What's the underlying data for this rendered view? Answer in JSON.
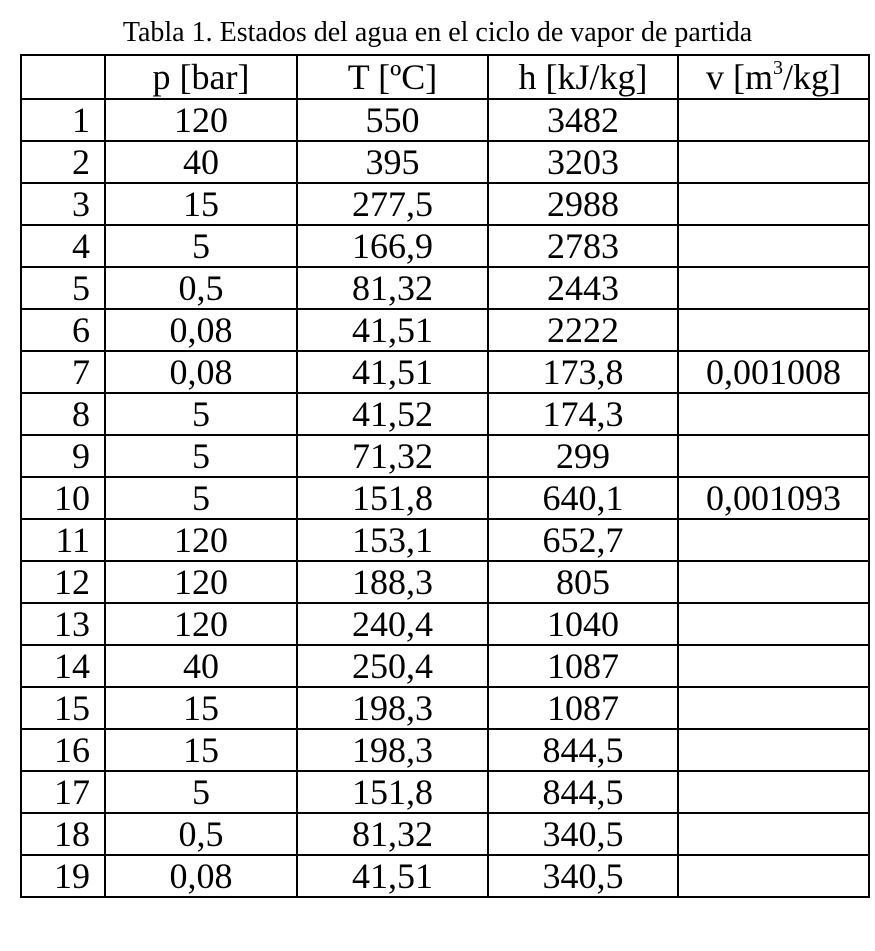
{
  "caption": "Tabla 1. Estados del agua en el ciclo de vapor de partida",
  "headers": {
    "index": "",
    "p": "p [bar]",
    "T": "T [ºC]",
    "h": "h [kJ/kg]",
    "v_prefix": "v [m",
    "v_sup": "3",
    "v_suffix": "/kg]"
  },
  "rows": [
    {
      "n": "1",
      "p": "120",
      "T": "550",
      "h": "3482",
      "v": ""
    },
    {
      "n": "2",
      "p": "40",
      "T": "395",
      "h": "3203",
      "v": ""
    },
    {
      "n": "3",
      "p": "15",
      "T": "277,5",
      "h": "2988",
      "v": ""
    },
    {
      "n": "4",
      "p": "5",
      "T": "166,9",
      "h": "2783",
      "v": ""
    },
    {
      "n": "5",
      "p": "0,5",
      "T": "81,32",
      "h": "2443",
      "v": ""
    },
    {
      "n": "6",
      "p": "0,08",
      "T": "41,51",
      "h": "2222",
      "v": ""
    },
    {
      "n": "7",
      "p": "0,08",
      "T": "41,51",
      "h": "173,8",
      "v": "0,001008"
    },
    {
      "n": "8",
      "p": "5",
      "T": "41,52",
      "h": "174,3",
      "v": ""
    },
    {
      "n": "9",
      "p": "5",
      "T": "71,32",
      "h": "299",
      "v": ""
    },
    {
      "n": "10",
      "p": "5",
      "T": "151,8",
      "h": "640,1",
      "v": "0,001093"
    },
    {
      "n": "11",
      "p": "120",
      "T": "153,1",
      "h": "652,7",
      "v": ""
    },
    {
      "n": "12",
      "p": "120",
      "T": "188,3",
      "h": "805",
      "v": ""
    },
    {
      "n": "13",
      "p": "120",
      "T": "240,4",
      "h": "1040",
      "v": ""
    },
    {
      "n": "14",
      "p": "40",
      "T": "250,4",
      "h": "1087",
      "v": ""
    },
    {
      "n": "15",
      "p": "15",
      "T": "198,3",
      "h": "1087",
      "v": ""
    },
    {
      "n": "16",
      "p": "15",
      "T": "198,3",
      "h": "844,5",
      "v": ""
    },
    {
      "n": "17",
      "p": "5",
      "T": "151,8",
      "h": "844,5",
      "v": ""
    },
    {
      "n": "18",
      "p": "0,5",
      "T": "81,32",
      "h": "340,5",
      "v": ""
    },
    {
      "n": "19",
      "p": "0,08",
      "T": "41,51",
      "h": "340,5",
      "v": ""
    }
  ]
}
